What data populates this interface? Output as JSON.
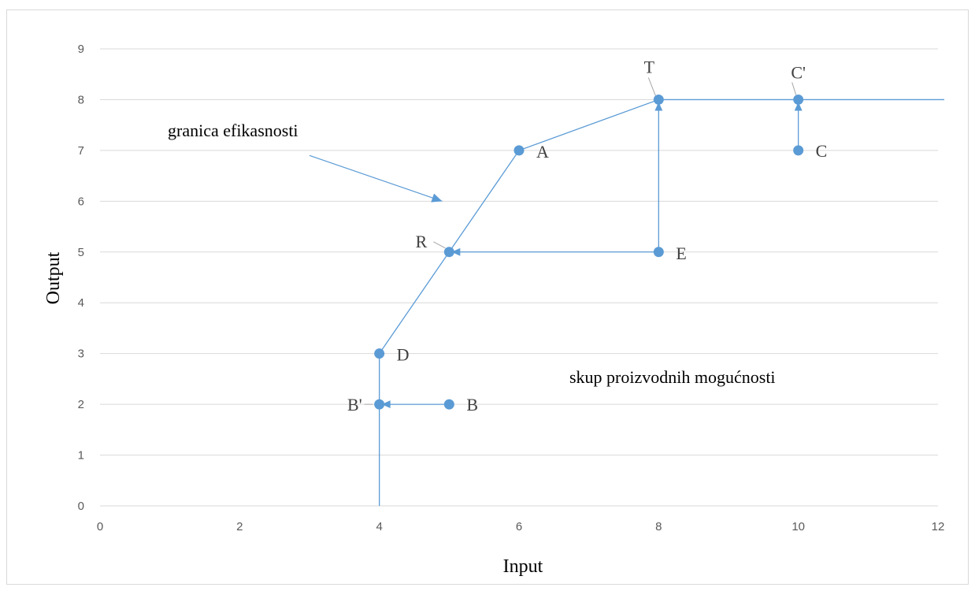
{
  "colors": {
    "series": "#5b9bd5",
    "grid": "#d9d9d9",
    "tick_text": "#595959",
    "leader": "#a6a6a6"
  },
  "chart_data": {
    "type": "scatter",
    "xlabel": "Input",
    "ylabel": "Output",
    "xlim": [
      0,
      12
    ],
    "ylim": [
      0,
      9
    ],
    "x_ticks": [
      0,
      2,
      4,
      6,
      8,
      10,
      12
    ],
    "y_ticks": [
      0,
      1,
      2,
      3,
      4,
      5,
      6,
      7,
      8,
      9
    ],
    "grid": "horizontal",
    "points": [
      {
        "label": "A",
        "x": 6,
        "y": 7
      },
      {
        "label": "B",
        "x": 5,
        "y": 2
      },
      {
        "label": "B'",
        "x": 4,
        "y": 2
      },
      {
        "label": "C",
        "x": 10,
        "y": 7
      },
      {
        "label": "C'",
        "x": 10,
        "y": 8
      },
      {
        "label": "D",
        "x": 4,
        "y": 3
      },
      {
        "label": "E",
        "x": 8,
        "y": 5
      },
      {
        "label": "R",
        "x": 5,
        "y": 5
      },
      {
        "label": "T",
        "x": 8,
        "y": 8
      }
    ],
    "frontier": [
      {
        "x": 4,
        "y": 0
      },
      {
        "x": 4,
        "y": 3
      },
      {
        "x": 6,
        "y": 7
      },
      {
        "x": 8,
        "y": 8
      },
      {
        "x": 12,
        "y": 8
      }
    ],
    "projections": [
      {
        "from": "B",
        "to": "B'"
      },
      {
        "from": "E",
        "to": "R"
      },
      {
        "from": "E",
        "to": "T"
      },
      {
        "from": "C",
        "to": "C'"
      }
    ],
    "annotations": [
      {
        "text": "granica efikasnosti",
        "pointer_from": {
          "x": 3.0,
          "y": 6.9
        },
        "pointer_to": {
          "x": 4.9,
          "y": 6.0
        }
      },
      {
        "text": "skup proizvodnih mogućnosti"
      }
    ]
  }
}
